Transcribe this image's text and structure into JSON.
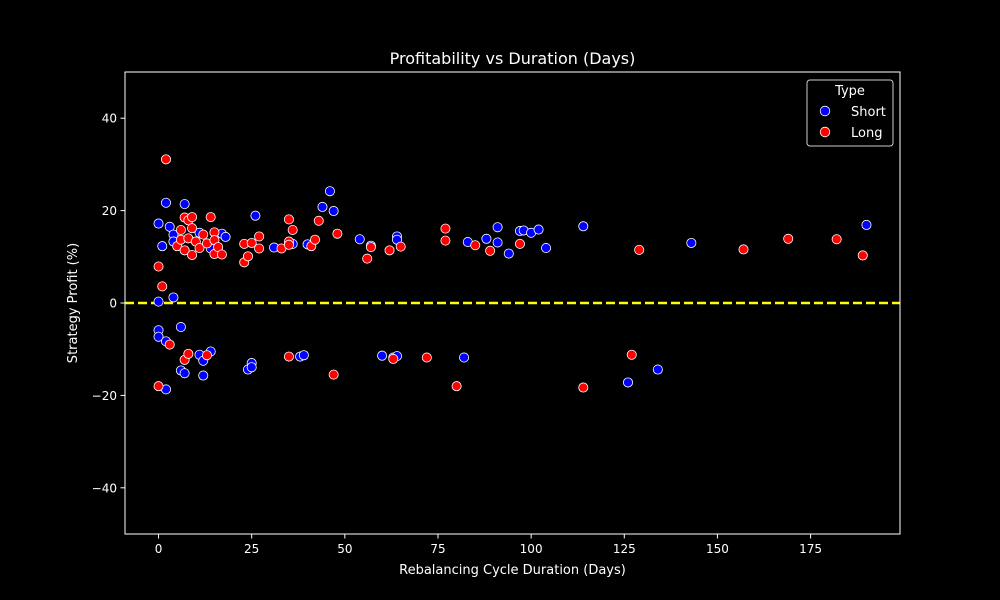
{
  "chart_data": {
    "type": "scatter",
    "title": "Profitability vs Duration (Days)",
    "xlabel": "Rebalancing Cycle Duration (Days)",
    "ylabel": "Strategy Profit (%)",
    "xlim": [
      -9,
      199
    ],
    "ylim": [
      -50,
      50
    ],
    "xticks": [
      0,
      25,
      50,
      75,
      100,
      125,
      150,
      175
    ],
    "yticks": [
      -40,
      -20,
      0,
      20,
      40
    ],
    "grid": false,
    "reference_line": {
      "y": 0,
      "style": "dashed",
      "color": "#ffff00"
    },
    "legend": {
      "title": "Type",
      "placement": "upper right"
    },
    "series": [
      {
        "name": "Short",
        "color": "#0000ff",
        "points": [
          {
            "x": 0,
            "y": 17.2
          },
          {
            "x": 1,
            "y": 12.3
          },
          {
            "x": 2,
            "y": 21.7
          },
          {
            "x": 3,
            "y": 16.5
          },
          {
            "x": 4,
            "y": 14.8
          },
          {
            "x": 4,
            "y": 13.3
          },
          {
            "x": 7,
            "y": 21.4
          },
          {
            "x": 11,
            "y": 15.2
          },
          {
            "x": 14,
            "y": 11.8
          },
          {
            "x": 17,
            "y": 15.0
          },
          {
            "x": 18,
            "y": 14.3
          },
          {
            "x": 26,
            "y": 18.9
          },
          {
            "x": 31,
            "y": 12.0
          },
          {
            "x": 36,
            "y": 12.8
          },
          {
            "x": 40,
            "y": 12.7
          },
          {
            "x": 44,
            "y": 20.8
          },
          {
            "x": 46,
            "y": 24.2
          },
          {
            "x": 47,
            "y": 19.9
          },
          {
            "x": 54,
            "y": 13.8
          },
          {
            "x": 57,
            "y": 12.4
          },
          {
            "x": 64,
            "y": 14.4
          },
          {
            "x": 64,
            "y": 13.7
          },
          {
            "x": 83,
            "y": 13.2
          },
          {
            "x": 88,
            "y": 13.9
          },
          {
            "x": 91,
            "y": 16.4
          },
          {
            "x": 91,
            "y": 13.1
          },
          {
            "x": 94,
            "y": 10.7
          },
          {
            "x": 97,
            "y": 15.6
          },
          {
            "x": 98,
            "y": 15.7
          },
          {
            "x": 100,
            "y": 15.2
          },
          {
            "x": 102,
            "y": 15.9
          },
          {
            "x": 104,
            "y": 11.9
          },
          {
            "x": 114,
            "y": 16.6
          },
          {
            "x": 143,
            "y": 13.0
          },
          {
            "x": 190,
            "y": 16.9
          },
          {
            "x": 0,
            "y": 0.3
          },
          {
            "x": 4,
            "y": 1.2
          },
          {
            "x": 0,
            "y": -5.9
          },
          {
            "x": 0,
            "y": -7.3
          },
          {
            "x": 2,
            "y": -8.3
          },
          {
            "x": 2,
            "y": -18.7
          },
          {
            "x": 6,
            "y": -5.2
          },
          {
            "x": 6,
            "y": -14.6
          },
          {
            "x": 7,
            "y": -15.2
          },
          {
            "x": 11,
            "y": -11.2
          },
          {
            "x": 12,
            "y": -12.5
          },
          {
            "x": 12,
            "y": -15.7
          },
          {
            "x": 14,
            "y": -10.5
          },
          {
            "x": 24,
            "y": -14.4
          },
          {
            "x": 25,
            "y": -13.0
          },
          {
            "x": 25,
            "y": -13.9
          },
          {
            "x": 38,
            "y": -11.6
          },
          {
            "x": 39,
            "y": -11.3
          },
          {
            "x": 60,
            "y": -11.4
          },
          {
            "x": 63,
            "y": -11.8
          },
          {
            "x": 64,
            "y": -11.5
          },
          {
            "x": 82,
            "y": -11.8
          },
          {
            "x": 126,
            "y": -17.2
          },
          {
            "x": 134,
            "y": -14.4
          }
        ]
      },
      {
        "name": "Long",
        "color": "#ff0000",
        "points": [
          {
            "x": 2,
            "y": 31.1
          },
          {
            "x": 0,
            "y": 7.9
          },
          {
            "x": 1,
            "y": 3.6
          },
          {
            "x": 5,
            "y": 12.3
          },
          {
            "x": 6,
            "y": 15.8
          },
          {
            "x": 6,
            "y": 13.7
          },
          {
            "x": 7,
            "y": 18.5
          },
          {
            "x": 7,
            "y": 11.4
          },
          {
            "x": 8,
            "y": 17.9
          },
          {
            "x": 8,
            "y": 14.0
          },
          {
            "x": 9,
            "y": 18.6
          },
          {
            "x": 9,
            "y": 16.2
          },
          {
            "x": 9,
            "y": 10.4
          },
          {
            "x": 10,
            "y": 13.3
          },
          {
            "x": 11,
            "y": 11.9
          },
          {
            "x": 12,
            "y": 14.8
          },
          {
            "x": 13,
            "y": 12.9
          },
          {
            "x": 14,
            "y": 18.6
          },
          {
            "x": 15,
            "y": 15.3
          },
          {
            "x": 15,
            "y": 13.6
          },
          {
            "x": 15,
            "y": 10.6
          },
          {
            "x": 16,
            "y": 12.1
          },
          {
            "x": 17,
            "y": 10.5
          },
          {
            "x": 23,
            "y": 12.8
          },
          {
            "x": 23,
            "y": 8.8
          },
          {
            "x": 24,
            "y": 10.1
          },
          {
            "x": 25,
            "y": 13.0
          },
          {
            "x": 27,
            "y": 14.4
          },
          {
            "x": 27,
            "y": 11.8
          },
          {
            "x": 33,
            "y": 11.8
          },
          {
            "x": 35,
            "y": 18.1
          },
          {
            "x": 35,
            "y": 13.3
          },
          {
            "x": 35,
            "y": 12.6
          },
          {
            "x": 36,
            "y": 15.8
          },
          {
            "x": 41,
            "y": 12.3
          },
          {
            "x": 42,
            "y": 13.7
          },
          {
            "x": 43,
            "y": 17.8
          },
          {
            "x": 48,
            "y": 15.0
          },
          {
            "x": 56,
            "y": 9.6
          },
          {
            "x": 57,
            "y": 12.1
          },
          {
            "x": 62,
            "y": 11.4
          },
          {
            "x": 65,
            "y": 12.2
          },
          {
            "x": 77,
            "y": 16.1
          },
          {
            "x": 77,
            "y": 13.5
          },
          {
            "x": 85,
            "y": 12.5
          },
          {
            "x": 89,
            "y": 11.3
          },
          {
            "x": 97,
            "y": 12.8
          },
          {
            "x": 129,
            "y": 11.5
          },
          {
            "x": 157,
            "y": 11.6
          },
          {
            "x": 169,
            "y": 13.9
          },
          {
            "x": 182,
            "y": 13.8
          },
          {
            "x": 189,
            "y": 10.3
          },
          {
            "x": 0,
            "y": -18.0
          },
          {
            "x": 3,
            "y": -9.0
          },
          {
            "x": 7,
            "y": -12.3
          },
          {
            "x": 8,
            "y": -11.0
          },
          {
            "x": 13,
            "y": -11.3
          },
          {
            "x": 35,
            "y": -11.6
          },
          {
            "x": 47,
            "y": -15.5
          },
          {
            "x": 63,
            "y": -12.1
          },
          {
            "x": 72,
            "y": -11.8
          },
          {
            "x": 80,
            "y": -18.0
          },
          {
            "x": 114,
            "y": -18.3
          },
          {
            "x": 127,
            "y": -11.2
          }
        ]
      }
    ]
  }
}
